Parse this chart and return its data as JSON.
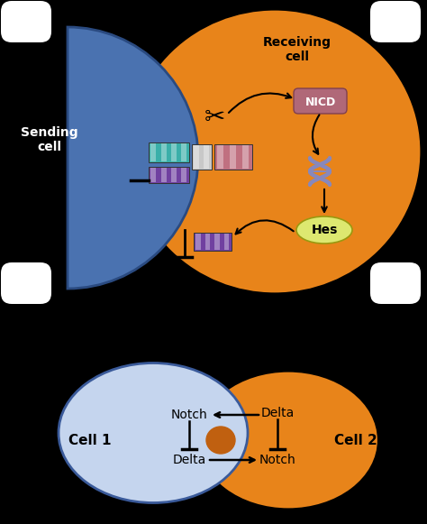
{
  "bg_color": "#000000",
  "sending_cell_color": "#4a72b0",
  "sending_cell_edge": "#2a4a80",
  "receiving_cell_color": "#e8841a",
  "cell1_color": "#c5d5ee",
  "cell1_edge": "#3a5a9a",
  "cell2_color": "#e8841a",
  "teal_block_color": "#3aafa9",
  "purple_block_color": "#7040a0",
  "white_block_color": "#c8c8c8",
  "pink_block_color": "#c07080",
  "nicd_box_color": "#b06878",
  "hes_ellipse_color": "#dde870",
  "dna_color": "#8888bb",
  "sending_label": "Sending\ncell",
  "receiving_label": "Receiving\ncell",
  "nicd_label": "NICD",
  "hes_label": "Hes",
  "cell1_label": "Cell 1",
  "cell2_label": "Cell 2",
  "notch_label": "Notch",
  "delta_label": "Delta",
  "fig_w": 4.74,
  "fig_h": 5.81,
  "dpi": 100
}
